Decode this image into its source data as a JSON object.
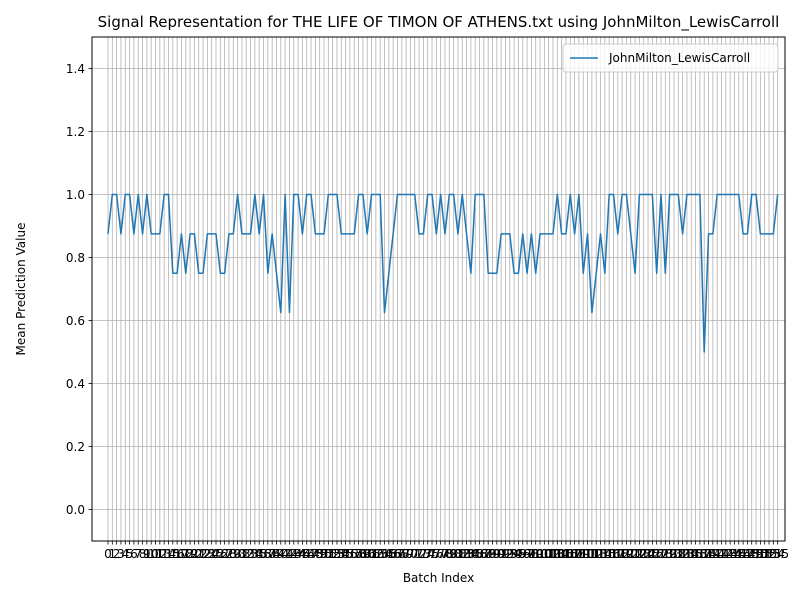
{
  "chart_data": {
    "type": "line",
    "title": "Signal Representation for THE LIFE OF TIMON OF ATHENS.txt using JohnMilton_LewisCarroll",
    "xlabel": "Batch Index",
    "ylabel": "Mean Prediction Value",
    "xlim": [
      -3.7,
      156.7
    ],
    "ylim": [
      -0.1,
      1.5
    ],
    "yticks": [
      0.0,
      0.2,
      0.4,
      0.6,
      0.8,
      1.0,
      1.2,
      1.4
    ],
    "ytick_labels": [
      "0.0",
      "0.2",
      "0.4",
      "0.6",
      "0.8",
      "1.0",
      "1.2",
      "1.4"
    ],
    "grid": true,
    "legend_position": "top-right",
    "color": "#1f77b4",
    "series": [
      {
        "name": "JohnMilton_LewisCarroll",
        "values": [
          0.875,
          1.0,
          1.0,
          0.875,
          1.0,
          1.0,
          0.875,
          1.0,
          0.875,
          1.0,
          0.875,
          0.875,
          0.875,
          1.0,
          1.0,
          0.75,
          0.75,
          0.875,
          0.75,
          0.875,
          0.875,
          0.75,
          0.75,
          0.875,
          0.875,
          0.875,
          0.75,
          0.75,
          0.875,
          0.875,
          1.0,
          0.875,
          0.875,
          0.875,
          1.0,
          0.875,
          1.0,
          0.75,
          0.875,
          0.75,
          0.625,
          1.0,
          0.625,
          1.0,
          1.0,
          0.875,
          1.0,
          1.0,
          0.875,
          0.875,
          0.875,
          1.0,
          1.0,
          1.0,
          0.875,
          0.875,
          0.875,
          0.875,
          1.0,
          1.0,
          0.875,
          1.0,
          1.0,
          1.0,
          0.625,
          0.75,
          0.875,
          1.0,
          1.0,
          1.0,
          1.0,
          1.0,
          0.875,
          0.875,
          1.0,
          1.0,
          0.875,
          1.0,
          0.875,
          1.0,
          1.0,
          0.875,
          1.0,
          0.875,
          0.75,
          1.0,
          1.0,
          1.0,
          0.75,
          0.75,
          0.75,
          0.875,
          0.875,
          0.875,
          0.75,
          0.75,
          0.875,
          0.75,
          0.875,
          0.75,
          0.875,
          0.875,
          0.875,
          0.875,
          1.0,
          0.875,
          0.875,
          1.0,
          0.875,
          1.0,
          0.75,
          0.875,
          0.625,
          0.75,
          0.875,
          0.75,
          1.0,
          1.0,
          0.875,
          1.0,
          1.0,
          0.875,
          0.75,
          1.0,
          1.0,
          1.0,
          1.0,
          0.75,
          1.0,
          0.75,
          1.0,
          1.0,
          1.0,
          0.875,
          1.0,
          1.0,
          1.0,
          1.0,
          0.5,
          0.875,
          0.875,
          1.0,
          1.0,
          1.0,
          1.0,
          1.0,
          1.0,
          0.875,
          0.875,
          1.0,
          1.0,
          0.875,
          0.875,
          0.875,
          0.875,
          1.0
        ]
      }
    ]
  }
}
